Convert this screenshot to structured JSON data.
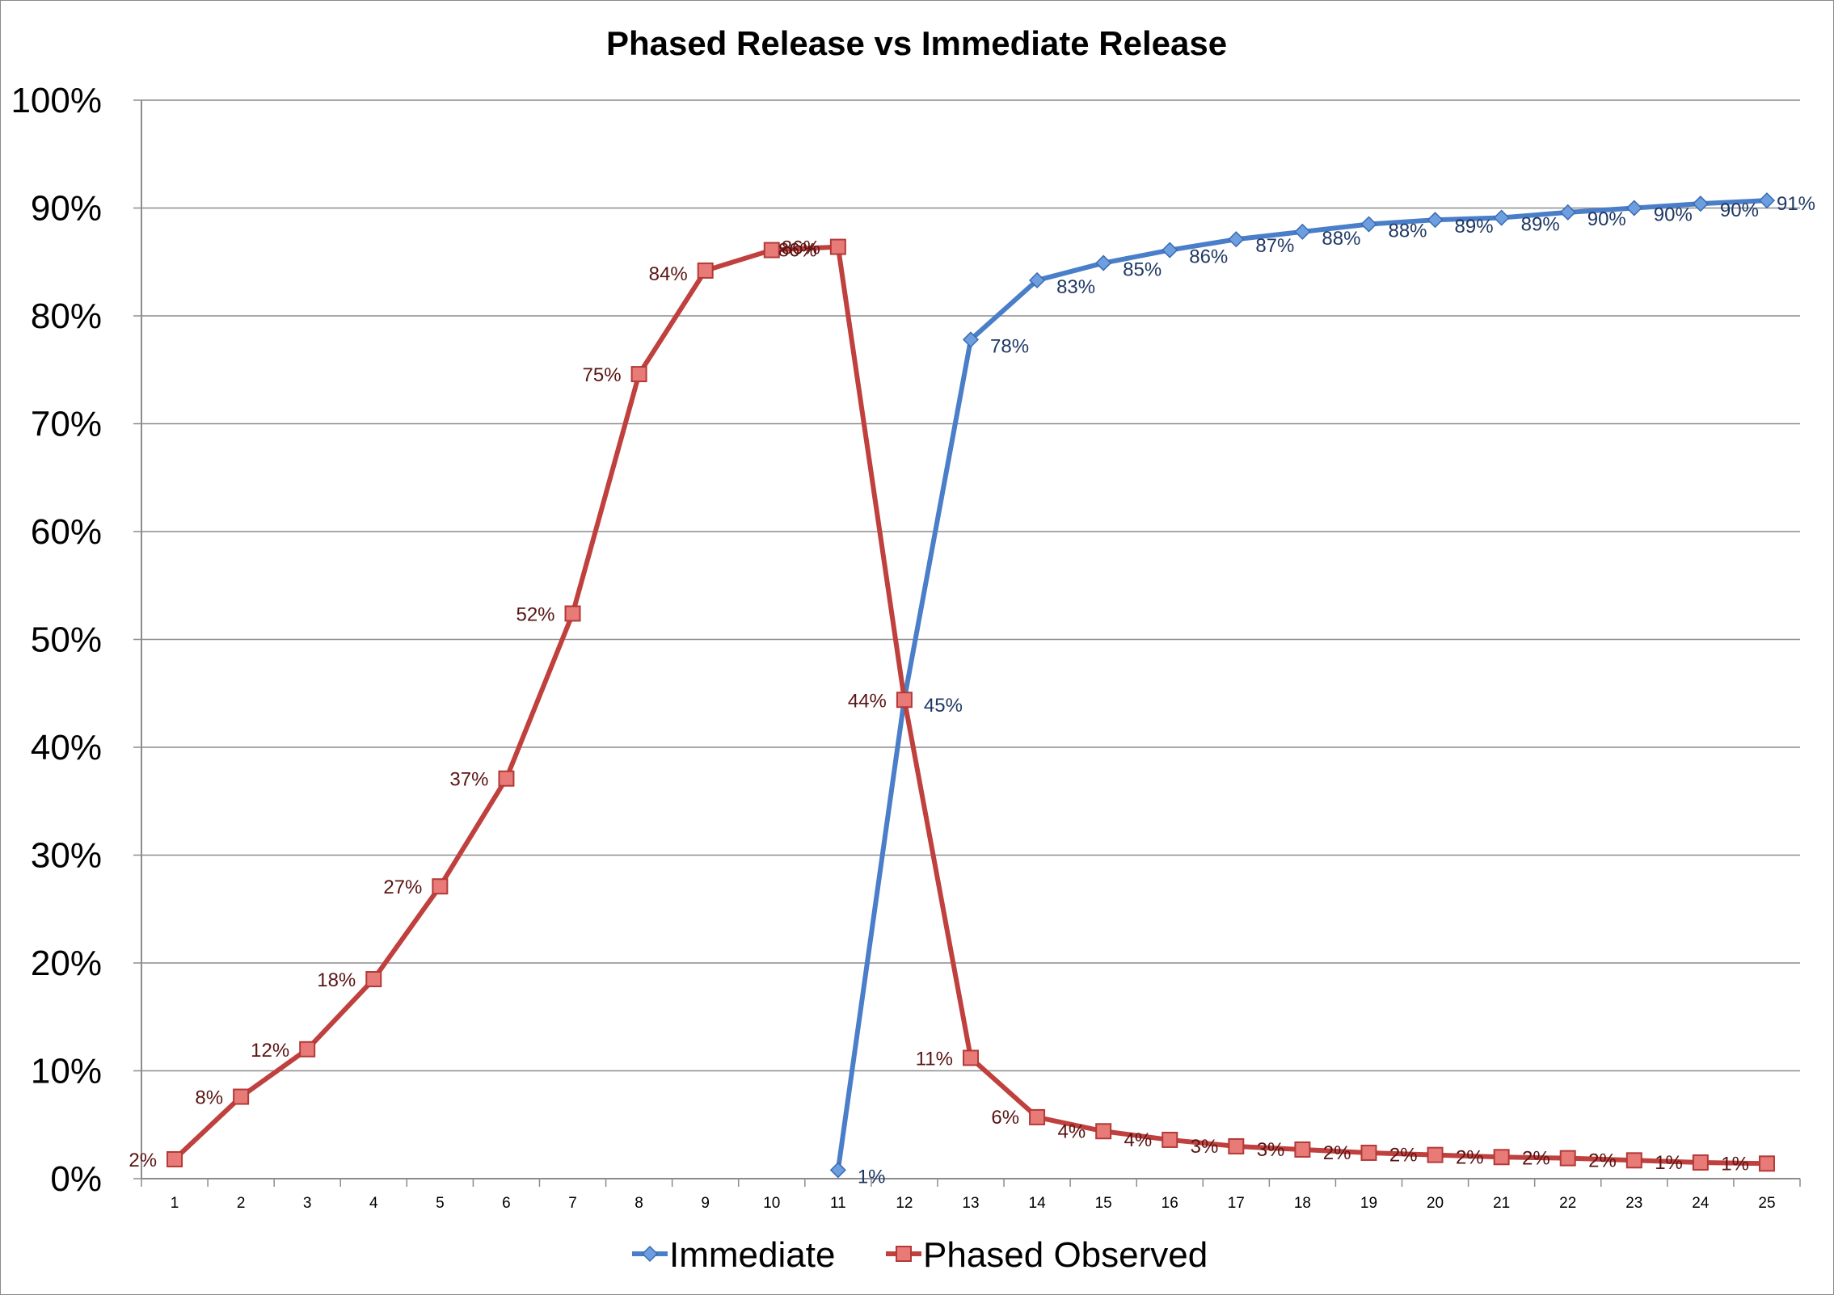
{
  "chart_data": {
    "type": "line",
    "title": "Phased Release vs Immediate Release",
    "xlabel": "",
    "ylabel": "",
    "x": [
      1,
      2,
      3,
      4,
      5,
      6,
      7,
      8,
      9,
      10,
      11,
      12,
      13,
      14,
      15,
      16,
      17,
      18,
      19,
      20,
      21,
      22,
      23,
      24,
      25
    ],
    "y_ticks": [
      "0%",
      "10%",
      "20%",
      "30%",
      "40%",
      "50%",
      "60%",
      "70%",
      "80%",
      "90%",
      "100%"
    ],
    "ylim": [
      0,
      100
    ],
    "grid": true,
    "legend_position": "bottom",
    "series": [
      {
        "name": "Immediate",
        "color": "#4a7ec8",
        "marker": "diamond",
        "x": [
          11,
          12,
          13,
          14,
          15,
          16,
          17,
          18,
          19,
          20,
          21,
          22,
          23,
          24,
          25
        ],
        "values": [
          0.8,
          44.5,
          77.8,
          83.3,
          84.9,
          86.1,
          87.1,
          87.8,
          88.5,
          88.9,
          89.1,
          89.6,
          90.0,
          90.4,
          90.7
        ],
        "labels": [
          "1%",
          "45%",
          "78%",
          "83%",
          "85%",
          "86%",
          "87%",
          "88%",
          "88%",
          "89%",
          "89%",
          "90%",
          "90%",
          "90%",
          "91%"
        ]
      },
      {
        "name": "Phased Observed",
        "color": "#c0403e",
        "marker": "square",
        "x": [
          1,
          2,
          3,
          4,
          5,
          6,
          7,
          8,
          9,
          10,
          11,
          12,
          13,
          14,
          15,
          16,
          17,
          18,
          19,
          20,
          21,
          22,
          23,
          24,
          25
        ],
        "values": [
          1.8,
          7.6,
          12.0,
          18.5,
          27.1,
          37.1,
          52.4,
          74.6,
          84.2,
          86.1,
          86.4,
          44.4,
          11.2,
          5.7,
          4.4,
          3.6,
          3.0,
          2.7,
          2.4,
          2.2,
          2.0,
          1.9,
          1.7,
          1.5,
          1.4
        ],
        "labels": [
          "2%",
          "8%",
          "12%",
          "18%",
          "27%",
          "37%",
          "52%",
          "75%",
          "84%",
          "86%",
          "86%",
          "44%",
          "11%",
          "6%",
          "4%",
          "4%",
          "3%",
          "3%",
          "2%",
          "2%",
          "2%",
          "2%",
          "2%",
          "1%",
          "1%"
        ]
      }
    ]
  }
}
